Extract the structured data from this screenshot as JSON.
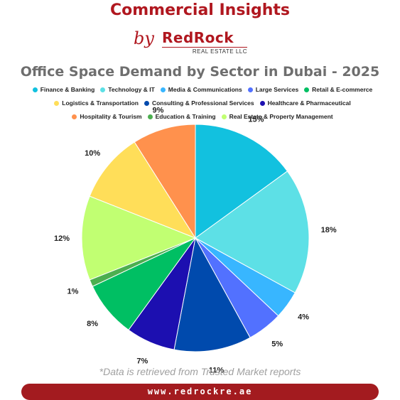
{
  "header": {
    "title": "Commercial Insights",
    "by": "by",
    "logo_main": "RedRock",
    "logo_sub": "REAL ESTATE LLC"
  },
  "footnote": "*Data is retrieved from Trusted Market reports",
  "website": "www.redrockre.ae",
  "chart_data": {
    "type": "pie",
    "title": "Office Space Demand by Sector in Dubai - 2025",
    "legend_position": "top",
    "slices": [
      {
        "name": "Finance & Banking",
        "value": 15,
        "label": "15%",
        "color": "#12c1df"
      },
      {
        "name": "Technology & IT",
        "value": 18,
        "label": "18%",
        "color": "#5de0e6"
      },
      {
        "name": "Media & Communications",
        "value": 4,
        "label": "4%",
        "color": "#38b6ff"
      },
      {
        "name": "Large Services",
        "value": 5,
        "label": "5%",
        "color": "#5271ff"
      },
      {
        "name": "Consulting & Professional Services",
        "value": 11,
        "label": "11%",
        "color": "#004aad"
      },
      {
        "name": "Healthcare & Pharmaceutical",
        "value": 7,
        "label": "7%",
        "color": "#1c0fb0"
      },
      {
        "name": "Retail & E-commerce",
        "value": 8,
        "label": "8%",
        "color": "#00bf63"
      },
      {
        "name": "Education & Training",
        "value": 1,
        "label": "1%",
        "color": "#4caf50"
      },
      {
        "name": "Real Estate & Property Management",
        "value": 12,
        "label": "12%",
        "color": "#c1ff72"
      },
      {
        "name": "Logistics & Transportation",
        "value": 10,
        "label": "10%",
        "color": "#ffde59"
      },
      {
        "name": "Hospitality & Tourism",
        "value": 9,
        "label": "9%",
        "color": "#ff914d"
      }
    ],
    "legend_order": [
      "Finance & Banking",
      "Technology & IT",
      "Media & Communications",
      "Large Services",
      "Retail & E-commerce",
      "Logistics & Transportation",
      "Consulting & Professional Services",
      "Healthcare & Pharmaceutical",
      "Hospitality & Tourism",
      "Education & Training",
      "Real Estate & Property Management"
    ]
  }
}
